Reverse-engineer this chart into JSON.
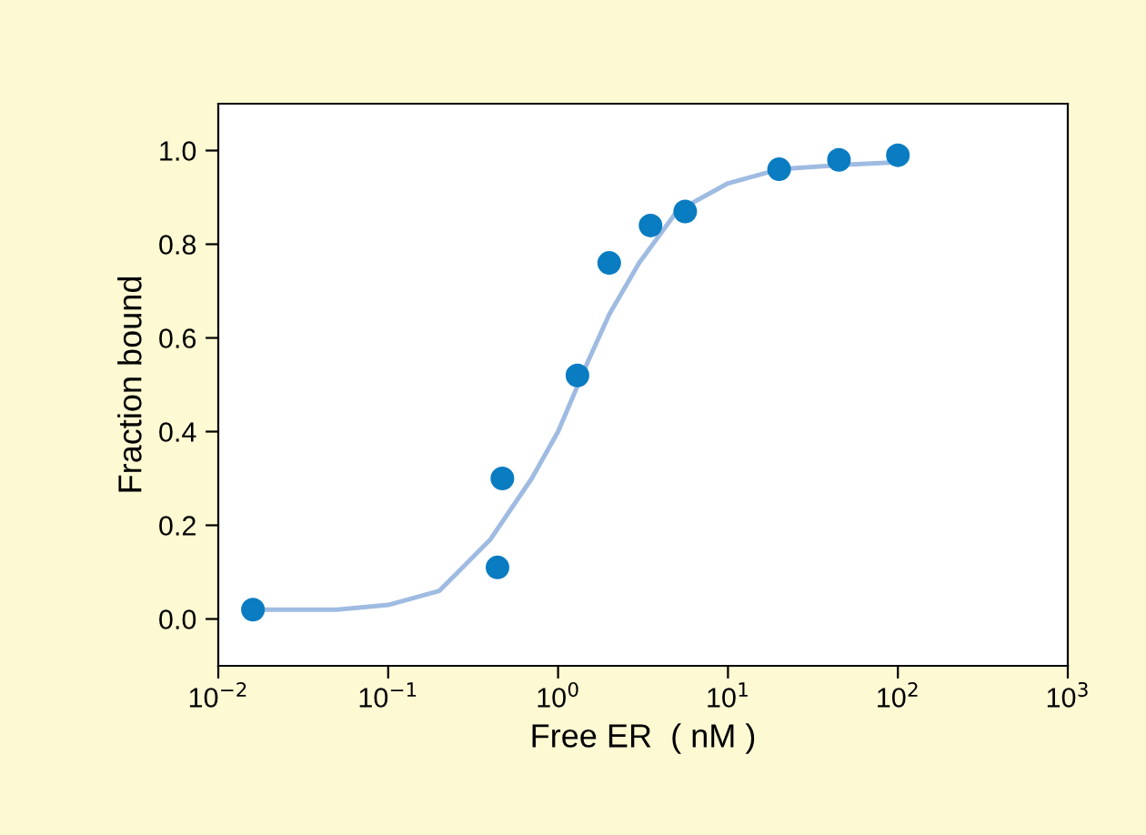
{
  "chart_data": {
    "type": "scatter",
    "xlabel": "Free ER  ( nM )",
    "ylabel": "Fraction bound",
    "log": "x",
    "xlim": [
      0.01,
      1000
    ],
    "ylim": [
      -0.1,
      1.1
    ],
    "xticks": [
      {
        "value": 0.01,
        "label": "10$^{−2}$"
      },
      {
        "value": 0.1,
        "label": "10$^{−1}$"
      },
      {
        "value": 1,
        "label": "10$^{0}$"
      },
      {
        "value": 10,
        "label": "10$^{1}$"
      },
      {
        "value": 100,
        "label": "10$^{2}$"
      },
      {
        "value": 1000,
        "label": "10$^{3}$"
      }
    ],
    "yticks": [
      {
        "value": 0,
        "label": "0.0"
      },
      {
        "value": 0.2,
        "label": "0.2"
      },
      {
        "value": 0.4,
        "label": "0.4"
      },
      {
        "value": 0.6,
        "label": "0.6"
      },
      {
        "value": 0.8,
        "label": "0.8"
      },
      {
        "value": 1,
        "label": "1.0"
      }
    ],
    "grid": false,
    "marker": "circle",
    "series": [
      {
        "type": "line",
        "color": "#9fbbe2",
        "marker": "none",
        "x": [
          0.016,
          0.05,
          0.1,
          0.2,
          0.4,
          0.7,
          1.0,
          1.5,
          2,
          3,
          5,
          10,
          20,
          50,
          100
        ],
        "values": [
          0.02,
          0.02,
          0.03,
          0.06,
          0.17,
          0.3,
          0.4,
          0.55,
          0.65,
          0.76,
          0.87,
          0.93,
          0.96,
          0.97,
          0.975
        ]
      },
      {
        "color": "#0a7cc1",
        "x": [
          0.016,
          0.44,
          0.47,
          1.3,
          2.0,
          3.5,
          5.6,
          20,
          45,
          100
        ],
        "values": [
          0.02,
          0.11,
          0.3,
          0.52,
          0.76,
          0.84,
          0.87,
          0.96,
          0.98,
          0.99
        ]
      }
    ]
  }
}
